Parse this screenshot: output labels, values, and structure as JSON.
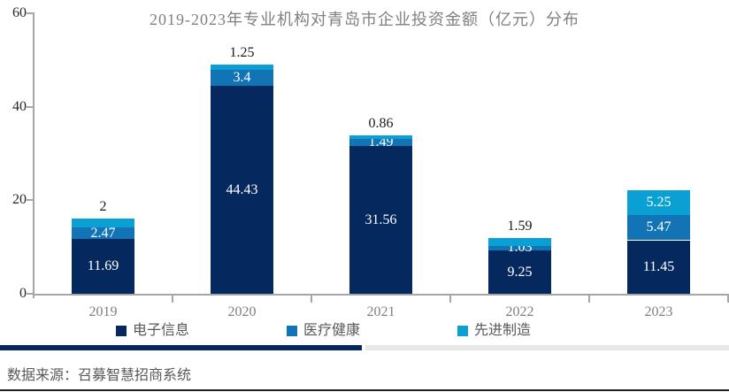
{
  "chart_data": {
    "type": "bar",
    "stacked": true,
    "title": "2019-2023年专业机构对青岛市企业投资金额（亿元）分布",
    "categories": [
      "2019",
      "2020",
      "2021",
      "2022",
      "2023"
    ],
    "series": [
      {
        "name": "电子信息",
        "color": "#05295e",
        "values": [
          11.69,
          44.43,
          31.56,
          9.25,
          11.45
        ],
        "labels": [
          "11.69",
          "44.43",
          "31.56",
          "9.25",
          "11.45"
        ]
      },
      {
        "name": "医疗健康",
        "color": "#1274b4",
        "values": [
          2.47,
          3.4,
          1.49,
          1.03,
          5.47
        ],
        "labels": [
          "2.47",
          "3.4",
          "1.49",
          "1.03",
          "5.47"
        ]
      },
      {
        "name": "先进制造",
        "color": "#0aa0d4",
        "values": [
          2,
          1.25,
          0.86,
          1.59,
          5.25
        ],
        "labels": [
          "2",
          "1.25",
          "0.86",
          "1.59",
          "5.25"
        ]
      }
    ],
    "ylim": [
      0,
      60
    ],
    "yticks": [
      "0",
      "20",
      "40",
      "60"
    ],
    "grid": false,
    "legend_position": "bottom"
  },
  "colors": {
    "axis": "#a6a6a6",
    "title_text": "#808080",
    "xtick_text": "#7f7f7f",
    "ytick_text": "#262626",
    "legend_text": "#595959",
    "divider_dark": "#06265c",
    "divider_light": "#e8e8e8"
  },
  "footer": {
    "source": "数据来源：召募智慧招商系统"
  }
}
